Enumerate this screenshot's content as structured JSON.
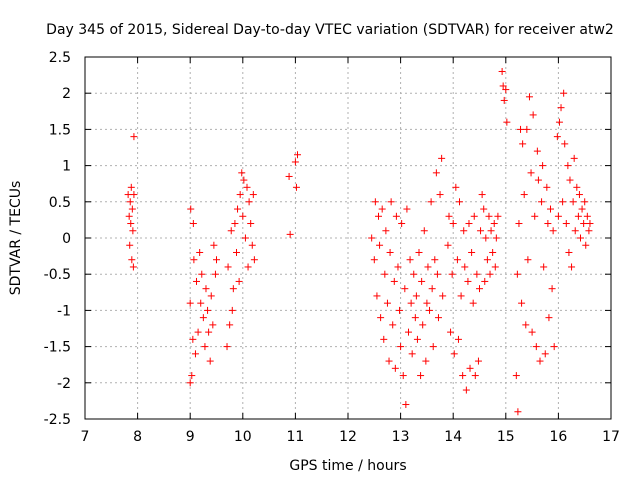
{
  "chart_data": {
    "type": "scatter",
    "title": "Day 345 of 2015, Sidereal Day-to-day VTEC variation (SDTVAR) for receiver atw2",
    "xlabel": "GPS time / hours",
    "ylabel": "SDTVAR / TECUs",
    "xlim": [
      7,
      17
    ],
    "ylim": [
      -2.5,
      2.5
    ],
    "xticks": [
      7,
      8,
      9,
      10,
      11,
      12,
      13,
      14,
      15,
      16,
      17
    ],
    "yticks": [
      -2.5,
      -2,
      -1.5,
      -1,
      -0.5,
      0,
      0.5,
      1,
      1.5,
      2,
      2.5
    ],
    "xtick_labels": [
      "7",
      "8",
      "9",
      "10",
      "11",
      "12",
      "13",
      "14",
      "15",
      "16",
      "17"
    ],
    "ytick_labels": [
      "-2.5",
      "-2",
      "-1.5",
      "-1",
      "-0.5",
      "0",
      "0.5",
      "1",
      "1.5",
      "2",
      "2.5"
    ],
    "grid": true,
    "marker": "+",
    "series": [
      {
        "name": "SDTVAR",
        "color": "#ff0000",
        "points": [
          [
            7.82,
            0.6
          ],
          [
            7.84,
            0.3
          ],
          [
            7.85,
            -0.1
          ],
          [
            7.86,
            0.5
          ],
          [
            7.87,
            0.2
          ],
          [
            7.88,
            0.7
          ],
          [
            7.89,
            -0.3
          ],
          [
            7.9,
            0.4
          ],
          [
            7.91,
            0.1
          ],
          [
            7.92,
            -0.4
          ],
          [
            7.93,
            1.4
          ],
          [
            7.93,
            0.6
          ],
          [
            9.0,
            -2.0
          ],
          [
            9.0,
            -0.9
          ],
          [
            9.01,
            0.4
          ],
          [
            9.03,
            -1.9
          ],
          [
            9.05,
            -1.4
          ],
          [
            9.06,
            0.2
          ],
          [
            9.07,
            -0.3
          ],
          [
            9.1,
            -1.6
          ],
          [
            9.12,
            -0.6
          ],
          [
            9.15,
            -1.3
          ],
          [
            9.18,
            -0.2
          ],
          [
            9.2,
            -0.9
          ],
          [
            9.22,
            -0.5
          ],
          [
            9.25,
            -1.1
          ],
          [
            9.28,
            -1.5
          ],
          [
            9.3,
            -0.7
          ],
          [
            9.33,
            -1.0
          ],
          [
            9.35,
            -1.3
          ],
          [
            9.38,
            -1.7
          ],
          [
            9.4,
            -0.8
          ],
          [
            9.43,
            -1.2
          ],
          [
            9.45,
            -0.1
          ],
          [
            9.48,
            -0.5
          ],
          [
            9.5,
            -0.3
          ],
          [
            9.7,
            -1.5
          ],
          [
            9.72,
            -0.4
          ],
          [
            9.75,
            -1.2
          ],
          [
            9.78,
            0.1
          ],
          [
            9.8,
            -1.0
          ],
          [
            9.82,
            -0.7
          ],
          [
            9.85,
            0.2
          ],
          [
            9.88,
            -0.2
          ],
          [
            9.9,
            0.4
          ],
          [
            9.93,
            -0.6
          ],
          [
            9.95,
            0.6
          ],
          [
            9.98,
            0.9
          ],
          [
            10.0,
            0.3
          ],
          [
            10.02,
            0.8
          ],
          [
            10.05,
            0.0
          ],
          [
            10.08,
            0.7
          ],
          [
            10.1,
            -0.4
          ],
          [
            10.12,
            0.5
          ],
          [
            10.15,
            0.2
          ],
          [
            10.18,
            -0.1
          ],
          [
            10.2,
            0.6
          ],
          [
            10.22,
            -0.3
          ],
          [
            10.88,
            0.85
          ],
          [
            10.9,
            0.05
          ],
          [
            11.0,
            1.05
          ],
          [
            11.02,
            0.7
          ],
          [
            11.04,
            1.15
          ],
          [
            12.45,
            0.0
          ],
          [
            12.5,
            -0.3
          ],
          [
            12.52,
            0.5
          ],
          [
            12.55,
            -0.8
          ],
          [
            12.58,
            0.3
          ],
          [
            12.6,
            -0.1
          ],
          [
            12.62,
            -1.1
          ],
          [
            12.65,
            0.4
          ],
          [
            12.68,
            -1.4
          ],
          [
            12.7,
            -0.5
          ],
          [
            12.72,
            0.1
          ],
          [
            12.75,
            -0.9
          ],
          [
            12.78,
            -1.7
          ],
          [
            12.8,
            -0.2
          ],
          [
            12.82,
            0.5
          ],
          [
            12.85,
            -1.2
          ],
          [
            12.88,
            -0.6
          ],
          [
            12.9,
            -1.8
          ],
          [
            12.92,
            0.3
          ],
          [
            12.95,
            -0.4
          ],
          [
            12.98,
            -1.0
          ],
          [
            13.0,
            -1.5
          ],
          [
            13.02,
            0.2
          ],
          [
            13.05,
            -1.9
          ],
          [
            13.08,
            -0.7
          ],
          [
            13.1,
            -2.3
          ],
          [
            13.12,
            0.4
          ],
          [
            13.15,
            -1.3
          ],
          [
            13.18,
            -0.3
          ],
          [
            13.2,
            -0.9
          ],
          [
            13.22,
            -1.6
          ],
          [
            13.25,
            -0.5
          ],
          [
            13.28,
            -1.1
          ],
          [
            13.3,
            -0.8
          ],
          [
            13.32,
            -1.4
          ],
          [
            13.35,
            -0.2
          ],
          [
            13.38,
            -1.9
          ],
          [
            13.4,
            -0.6
          ],
          [
            13.42,
            -1.2
          ],
          [
            13.45,
            0.1
          ],
          [
            13.48,
            -1.7
          ],
          [
            13.5,
            -0.9
          ],
          [
            13.52,
            -0.4
          ],
          [
            13.55,
            -1.0
          ],
          [
            13.58,
            0.5
          ],
          [
            13.6,
            -0.7
          ],
          [
            13.62,
            -1.5
          ],
          [
            13.65,
            -0.3
          ],
          [
            13.68,
            0.9
          ],
          [
            13.7,
            -0.5
          ],
          [
            13.72,
            -1.1
          ],
          [
            13.75,
            0.6
          ],
          [
            13.78,
            1.1
          ],
          [
            13.8,
            -0.8
          ],
          [
            13.9,
            -0.1
          ],
          [
            13.92,
            0.3
          ],
          [
            13.95,
            -1.3
          ],
          [
            13.98,
            -0.5
          ],
          [
            14.0,
            0.2
          ],
          [
            14.02,
            -1.6
          ],
          [
            14.05,
            0.7
          ],
          [
            14.08,
            -0.3
          ],
          [
            14.1,
            -1.4
          ],
          [
            14.12,
            0.5
          ],
          [
            14.15,
            -0.8
          ],
          [
            14.18,
            -1.9
          ],
          [
            14.2,
            0.1
          ],
          [
            14.22,
            -0.4
          ],
          [
            14.25,
            -2.1
          ],
          [
            14.28,
            -0.6
          ],
          [
            14.3,
            0.2
          ],
          [
            14.32,
            -1.8
          ],
          [
            14.35,
            -0.2
          ],
          [
            14.38,
            -0.9
          ],
          [
            14.4,
            0.3
          ],
          [
            14.42,
            -1.9
          ],
          [
            14.45,
            -0.5
          ],
          [
            14.48,
            -1.7
          ],
          [
            14.5,
            -0.7
          ],
          [
            14.52,
            0.1
          ],
          [
            14.55,
            0.6
          ],
          [
            14.58,
            0.4
          ],
          [
            14.6,
            -0.6
          ],
          [
            14.62,
            0.0
          ],
          [
            14.65,
            -0.3
          ],
          [
            14.68,
            0.3
          ],
          [
            14.7,
            -0.5
          ],
          [
            14.72,
            0.1
          ],
          [
            14.75,
            -0.2
          ],
          [
            14.78,
            0.2
          ],
          [
            14.8,
            -0.4
          ],
          [
            14.82,
            0.0
          ],
          [
            14.85,
            0.3
          ],
          [
            14.93,
            2.3
          ],
          [
            14.95,
            2.1
          ],
          [
            14.97,
            1.9
          ],
          [
            15.0,
            2.05
          ],
          [
            15.02,
            1.6
          ],
          [
            15.2,
            -1.9
          ],
          [
            15.22,
            -0.5
          ],
          [
            15.23,
            -2.4
          ],
          [
            15.25,
            0.2
          ],
          [
            15.28,
            1.5
          ],
          [
            15.3,
            -0.9
          ],
          [
            15.32,
            1.3
          ],
          [
            15.35,
            0.6
          ],
          [
            15.38,
            -1.2
          ],
          [
            15.4,
            1.5
          ],
          [
            15.42,
            -0.3
          ],
          [
            15.45,
            1.95
          ],
          [
            15.48,
            0.9
          ],
          [
            15.5,
            -1.3
          ],
          [
            15.52,
            1.7
          ],
          [
            15.55,
            0.3
          ],
          [
            15.58,
            -1.5
          ],
          [
            15.6,
            1.2
          ],
          [
            15.62,
            0.8
          ],
          [
            15.65,
            -1.7
          ],
          [
            15.68,
            0.5
          ],
          [
            15.7,
            1.0
          ],
          [
            15.72,
            -0.4
          ],
          [
            15.75,
            -1.6
          ],
          [
            15.78,
            0.7
          ],
          [
            15.8,
            0.2
          ],
          [
            15.82,
            -1.1
          ],
          [
            15.85,
            0.4
          ],
          [
            15.88,
            -0.7
          ],
          [
            15.9,
            0.1
          ],
          [
            15.92,
            -1.5
          ],
          [
            15.98,
            1.4
          ],
          [
            16.0,
            0.3
          ],
          [
            16.02,
            1.6
          ],
          [
            16.05,
            1.8
          ],
          [
            16.08,
            0.5
          ],
          [
            16.1,
            2.0
          ],
          [
            16.12,
            1.3
          ],
          [
            16.15,
            0.2
          ],
          [
            16.18,
            1.0
          ],
          [
            16.2,
            -0.2
          ],
          [
            16.22,
            0.8
          ],
          [
            16.25,
            -0.4
          ],
          [
            16.28,
            0.5
          ],
          [
            16.3,
            1.1
          ],
          [
            16.32,
            0.1
          ],
          [
            16.35,
            0.7
          ],
          [
            16.38,
            0.3
          ],
          [
            16.4,
            0.6
          ],
          [
            16.42,
            0.0
          ],
          [
            16.45,
            0.4
          ],
          [
            16.48,
            0.2
          ],
          [
            16.5,
            0.5
          ],
          [
            16.52,
            -0.1
          ],
          [
            16.55,
            0.3
          ],
          [
            16.58,
            0.1
          ],
          [
            16.6,
            0.2
          ]
        ]
      }
    ]
  }
}
